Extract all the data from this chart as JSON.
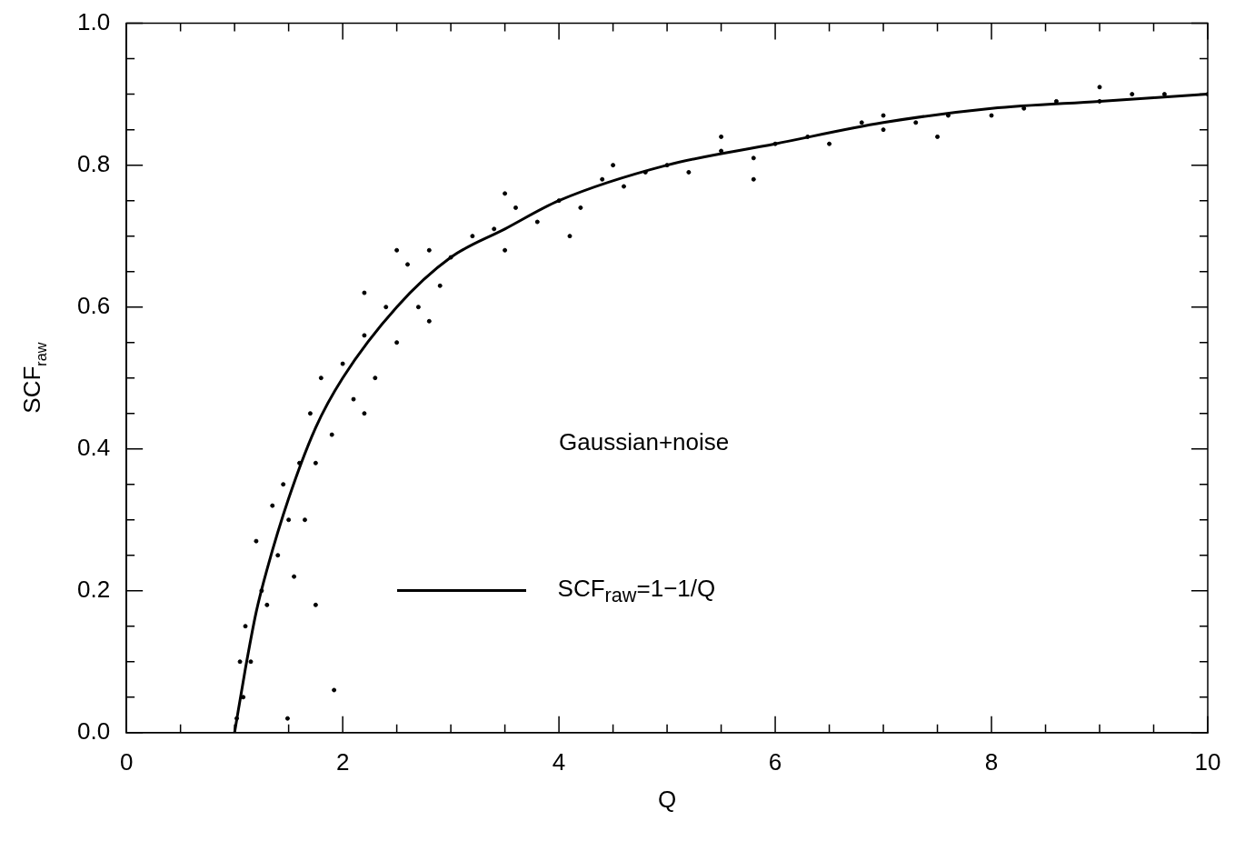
{
  "chart_data": {
    "type": "scatter",
    "xlabel": "Q",
    "ylabel": "SCF$_{raw}$",
    "annotations": [
      "Gaussian+noise"
    ],
    "legend": "bottom",
    "xlim": [
      0,
      10
    ],
    "ylim": [
      0,
      1
    ],
    "xticks": [
      0,
      {
        "value": 0.5,
        "label": null
      },
      {
        "value": 1,
        "label": null
      },
      {
        "value": 1.5,
        "label": null
      },
      2,
      {
        "value": 2.5,
        "label": null
      },
      {
        "value": 3,
        "label": null
      },
      {
        "value": 3.5,
        "label": null
      },
      4,
      {
        "value": 4.5,
        "label": null
      },
      {
        "value": 5,
        "label": null
      },
      {
        "value": 5.5,
        "label": null
      },
      6,
      {
        "value": 6.5,
        "label": null
      },
      {
        "value": 7,
        "label": null
      },
      {
        "value": 7.5,
        "label": null
      },
      8,
      {
        "value": 8.5,
        "label": null
      },
      {
        "value": 9,
        "label": null
      },
      {
        "value": 9.5,
        "label": null
      },
      10
    ],
    "yticks": [
      {
        "value": 0,
        "label": "0.0"
      },
      {
        "value": 0.05,
        "label": null
      },
      {
        "value": 0.1,
        "label": null
      },
      {
        "value": 0.15,
        "label": null
      },
      0.2,
      {
        "value": 0.25,
        "label": null
      },
      {
        "value": 0.3,
        "label": null
      },
      {
        "value": 0.35,
        "label": null
      },
      0.4,
      {
        "value": 0.45,
        "label": null
      },
      {
        "value": 0.5,
        "label": null
      },
      {
        "value": 0.55,
        "label": null
      },
      0.6,
      {
        "value": 0.65,
        "label": null
      },
      {
        "value": 0.7,
        "label": null
      },
      {
        "value": 0.75,
        "label": null
      },
      0.8,
      {
        "value": 0.85,
        "label": null
      },
      {
        "value": 0.9,
        "label": null
      },
      {
        "value": 0.95,
        "label": null
      },
      {
        "value": 1,
        "label": "1.0"
      }
    ],
    "series": [
      {
        "type": "scatter",
        "marker": "circle",
        "color": "#000000",
        "x": [
          1.02,
          1.05,
          1.08,
          1.1,
          1.15,
          1.2,
          1.25,
          1.3,
          1.35,
          1.4,
          1.45,
          1.49,
          1.5,
          1.55,
          1.6,
          1.65,
          1.7,
          1.75,
          1.75,
          1.8,
          1.9,
          1.92,
          2.0,
          2.1,
          2.2,
          2.2,
          2.2,
          2.3,
          2.4,
          2.5,
          2.5,
          2.6,
          2.7,
          2.8,
          2.8,
          2.9,
          3.0,
          3.2,
          3.4,
          3.5,
          3.5,
          3.6,
          3.8,
          4.0,
          4.1,
          4.2,
          4.4,
          4.5,
          4.6,
          4.8,
          5.0,
          5.2,
          5.5,
          5.5,
          5.8,
          5.8,
          6.0,
          6.3,
          6.5,
          6.8,
          7.0,
          7.0,
          7.3,
          7.5,
          7.6,
          8.0,
          8.3,
          8.6,
          9.0,
          9.0,
          9.3,
          9.6,
          10.0
        ],
        "values": [
          0.02,
          0.1,
          0.05,
          0.15,
          0.1,
          0.27,
          0.2,
          0.18,
          0.32,
          0.25,
          0.35,
          0.02,
          0.3,
          0.22,
          0.38,
          0.3,
          0.45,
          0.38,
          0.18,
          0.5,
          0.42,
          0.06,
          0.52,
          0.47,
          0.56,
          0.62,
          0.45,
          0.5,
          0.6,
          0.55,
          0.68,
          0.66,
          0.6,
          0.68,
          0.58,
          0.63,
          0.67,
          0.7,
          0.71,
          0.68,
          0.76,
          0.74,
          0.72,
          0.75,
          0.7,
          0.74,
          0.78,
          0.8,
          0.77,
          0.79,
          0.8,
          0.79,
          0.82,
          0.84,
          0.81,
          0.78,
          0.83,
          0.84,
          0.83,
          0.86,
          0.85,
          0.87,
          0.86,
          0.84,
          0.87,
          0.87,
          0.88,
          0.89,
          0.89,
          0.91,
          0.9,
          0.9,
          0.9
        ]
      },
      {
        "type": "line",
        "marker": "none",
        "name": "SCF$_{raw}$=1−1/Q",
        "color": "#000000",
        "line_style": "solid",
        "x": [
          1,
          1.1,
          1.2,
          1.3,
          1.5,
          1.75,
          2,
          2.5,
          3,
          3.5,
          4,
          5,
          6,
          7,
          8,
          9,
          10
        ],
        "values": [
          0,
          0.09,
          0.17,
          0.23,
          0.33,
          0.43,
          0.5,
          0.6,
          0.67,
          0.71,
          0.75,
          0.8,
          0.83,
          0.86,
          0.88,
          0.89,
          0.9
        ]
      }
    ]
  }
}
